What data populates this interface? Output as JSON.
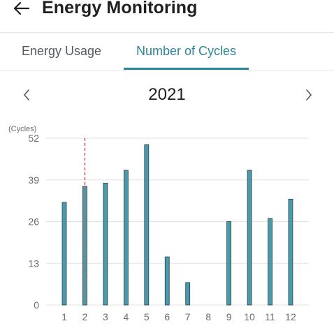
{
  "header": {
    "back_icon": "arrow-left-icon",
    "title": "Energy Monitoring"
  },
  "tabs": [
    {
      "label": "Energy Usage",
      "active": false
    },
    {
      "label": "Number of Cycles",
      "active": true
    }
  ],
  "year_nav": {
    "prev_icon": "chevron-left-icon",
    "year": "2021",
    "next_icon": "chevron-right-icon"
  },
  "colors": {
    "accent": "#2c8597",
    "bar_fill": "#4a9aad",
    "bar_stroke": "#2d3f44",
    "marker": "#e0524a",
    "grid": "#e3e3e3"
  },
  "chart_data": {
    "type": "bar",
    "ylabel": "(Cycles)",
    "ylim": [
      0,
      52
    ],
    "yticks": [
      0,
      13,
      26,
      39,
      52
    ],
    "grid": true,
    "categories": [
      "1",
      "2",
      "3",
      "4",
      "5",
      "6",
      "7",
      "8",
      "9",
      "10",
      "11",
      "12"
    ],
    "values": [
      32,
      37,
      38,
      42,
      50,
      15,
      7,
      0,
      26,
      42,
      27,
      33
    ],
    "highlight_category": "2"
  }
}
